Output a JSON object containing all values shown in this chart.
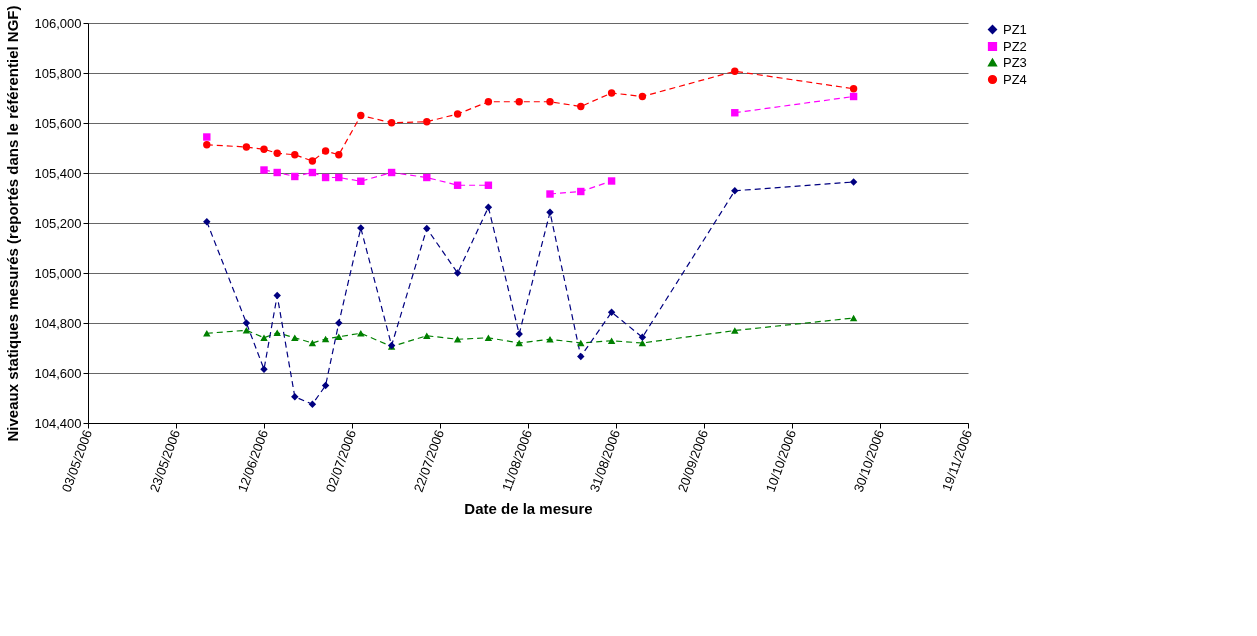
{
  "chart_data": {
    "type": "line",
    "xlabel": "Date de la mesure",
    "ylabel": "Niveaux statiques mesurés (reportés dans le référentiel NGF)",
    "x": [
      "2006-05-30",
      "2006-06-08",
      "2006-06-12",
      "2006-06-15",
      "2006-06-19",
      "2006-06-23",
      "2006-06-26",
      "2006-06-29",
      "2006-07-04",
      "2006-07-11",
      "2006-07-19",
      "2006-07-26",
      "2006-08-02",
      "2006-08-09",
      "2006-08-16",
      "2006-08-23",
      "2006-08-30",
      "2006-09-06",
      "2006-09-27",
      "2006-10-24"
    ],
    "series": [
      {
        "name": "PZ1",
        "color": "#000080",
        "marker": "diamond",
        "values": [
          105205,
          104800,
          104615,
          104910,
          104505,
          104475,
          104550,
          104800,
          105180,
          104710,
          105178,
          105000,
          105263,
          104756,
          105243,
          104666,
          104843,
          104743,
          105329,
          105364
        ]
      },
      {
        "name": "PZ2",
        "color": "#ff00ff",
        "marker": "square",
        "values": [
          105544,
          null,
          105412,
          105402,
          105386,
          105402,
          105382,
          105382,
          105367,
          105402,
          105382,
          105351,
          105351,
          null,
          105316,
          105326,
          105368,
          null,
          105641,
          105706
        ]
      },
      {
        "name": "PZ3",
        "color": "#008000",
        "marker": "triangle",
        "values": [
          104759,
          104771,
          104741,
          104761,
          104741,
          104720,
          104736,
          104745,
          104759,
          104706,
          104749,
          104735,
          104741,
          104720,
          104735,
          104720,
          104729,
          104720,
          104770,
          104820
        ]
      },
      {
        "name": "PZ4",
        "color": "#ff0000",
        "marker": "circle",
        "values": [
          105513,
          105504,
          105495,
          105479,
          105473,
          105448,
          105488,
          105473,
          105630,
          105601,
          105605,
          105636,
          105685,
          105685,
          105685,
          105666,
          105720,
          105706,
          105807,
          105737
        ]
      }
    ],
    "xlim": [
      "2006-05-03",
      "2006-11-19"
    ],
    "xticks": [
      {
        "value": "2006-05-03",
        "label": "03/05/2006"
      },
      {
        "value": "2006-05-23",
        "label": "23/05/2006"
      },
      {
        "value": "2006-06-12",
        "label": "12/06/2006"
      },
      {
        "value": "2006-07-02",
        "label": "02/07/2006"
      },
      {
        "value": "2006-07-22",
        "label": "22/07/2006"
      },
      {
        "value": "2006-08-11",
        "label": "11/08/2006"
      },
      {
        "value": "2006-08-31",
        "label": "31/08/2006"
      },
      {
        "value": "2006-09-20",
        "label": "20/09/2006"
      },
      {
        "value": "2006-10-10",
        "label": "10/10/2006"
      },
      {
        "value": "2006-10-30",
        "label": "30/10/2006"
      },
      {
        "value": "2006-11-19",
        "label": "19/11/2006"
      }
    ],
    "ylim": [
      104400,
      106000
    ],
    "yticks": [
      {
        "value": 104400,
        "label": "104,400"
      },
      {
        "value": 104600,
        "label": "104,600"
      },
      {
        "value": 104800,
        "label": "104,800"
      },
      {
        "value": 105000,
        "label": "105,000"
      },
      {
        "value": 105200,
        "label": "105,200"
      },
      {
        "value": 105400,
        "label": "105,400"
      },
      {
        "value": 105600,
        "label": "105,600"
      },
      {
        "value": 105800,
        "label": "105,800"
      },
      {
        "value": 106000,
        "label": "106,000"
      }
    ],
    "grid": "y",
    "legend": "right",
    "line_style": "dashed"
  }
}
